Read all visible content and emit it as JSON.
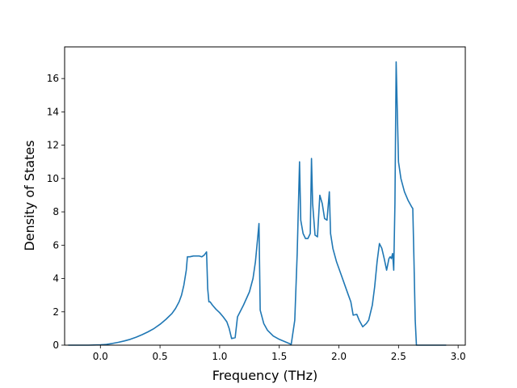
{
  "chart_data": {
    "type": "line",
    "title": "",
    "xlabel": "Frequency (THz)",
    "ylabel": "Density of States",
    "xlim": [
      -0.3,
      3.06
    ],
    "ylim": [
      0,
      17.9
    ],
    "xticks": [
      0.0,
      0.5,
      1.0,
      1.5,
      2.0,
      2.5,
      3.0
    ],
    "xtick_labels": [
      "0.0",
      "0.5",
      "1.0",
      "1.5",
      "2.0",
      "2.5",
      "3.0"
    ],
    "yticks": [
      0,
      2,
      4,
      6,
      8,
      10,
      12,
      14,
      16
    ],
    "ytick_labels": [
      "0",
      "2",
      "4",
      "6",
      "8",
      "10",
      "12",
      "14",
      "16"
    ],
    "grid": false,
    "line_color": "#1f77b4",
    "series": [
      {
        "x": [
          -0.27,
          -0.2,
          -0.1,
          0.0,
          0.05,
          0.1,
          0.15,
          0.2,
          0.25,
          0.3,
          0.35,
          0.4,
          0.45,
          0.5,
          0.55,
          0.6,
          0.63,
          0.66,
          0.68,
          0.7,
          0.72,
          0.73,
          0.75,
          0.78,
          0.8,
          0.83,
          0.85,
          0.87,
          0.89,
          0.9,
          0.91,
          0.92,
          0.94,
          0.97,
          1.0,
          1.03,
          1.06,
          1.08,
          1.1,
          1.13,
          1.15,
          1.2,
          1.25,
          1.28,
          1.3,
          1.32,
          1.33,
          1.34,
          1.37,
          1.4,
          1.45,
          1.5,
          1.55,
          1.6,
          1.63,
          1.65,
          1.67,
          1.68,
          1.7,
          1.72,
          1.74,
          1.76,
          1.77,
          1.78,
          1.8,
          1.82,
          1.84,
          1.86,
          1.88,
          1.9,
          1.92,
          1.93,
          1.95,
          1.98,
          2.02,
          2.05,
          2.08,
          2.1,
          2.12,
          2.15,
          2.17,
          2.2,
          2.23,
          2.25,
          2.28,
          2.3,
          2.32,
          2.34,
          2.36,
          2.38,
          2.4,
          2.42,
          2.43,
          2.44,
          2.45,
          2.46,
          2.47,
          2.48,
          2.5,
          2.52,
          2.55,
          2.58,
          2.61,
          2.62,
          2.63,
          2.64,
          2.65,
          2.7,
          2.8,
          2.9
        ],
        "y": [
          0,
          0,
          0,
          0.02,
          0.05,
          0.1,
          0.17,
          0.25,
          0.35,
          0.48,
          0.63,
          0.8,
          1.0,
          1.25,
          1.55,
          1.9,
          2.2,
          2.6,
          3.0,
          3.6,
          4.5,
          5.3,
          5.3,
          5.35,
          5.35,
          5.35,
          5.3,
          5.4,
          5.6,
          3.4,
          2.6,
          2.6,
          2.4,
          2.15,
          1.95,
          1.7,
          1.4,
          1.0,
          0.4,
          0.45,
          1.7,
          2.4,
          3.2,
          4.0,
          5.0,
          6.5,
          7.3,
          2.1,
          1.3,
          0.9,
          0.55,
          0.35,
          0.2,
          0.05,
          1.5,
          5.5,
          11.0,
          7.5,
          6.7,
          6.4,
          6.4,
          6.7,
          11.2,
          8.5,
          6.6,
          6.5,
          9.0,
          8.5,
          7.6,
          7.5,
          9.2,
          6.7,
          5.8,
          5.0,
          4.2,
          3.6,
          3.0,
          2.6,
          1.8,
          1.85,
          1.5,
          1.1,
          1.3,
          1.5,
          2.4,
          3.5,
          5.0,
          6.1,
          5.8,
          5.2,
          4.5,
          5.2,
          5.3,
          5.2,
          5.5,
          4.5,
          8.5,
          17.0,
          11.0,
          10.0,
          9.2,
          8.7,
          8.3,
          8.2,
          5.0,
          1.5,
          0,
          0,
          0,
          0
        ]
      }
    ]
  }
}
